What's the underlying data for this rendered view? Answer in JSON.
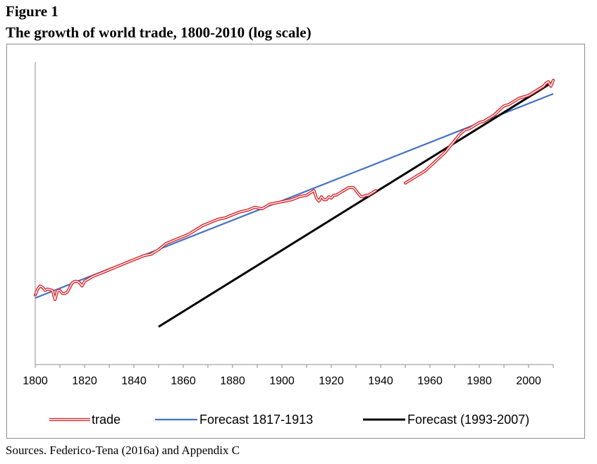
{
  "figure_label": "Figure 1",
  "figure_title": "The growth of world trade, 1800-2010 (log scale)",
  "sources": "Sources. Federico-Tena (2016a) and Appendix C",
  "chart_data": {
    "type": "line",
    "title": "The growth of world trade, 1800-2010 (log scale)",
    "xlabel": "",
    "ylabel": "",
    "xlim": [
      1800,
      2010
    ],
    "ylim": [
      0,
      100
    ],
    "y_scale_note": "log scale, no y tick labels shown",
    "grid": false,
    "legend_position": "bottom",
    "x_ticks": [
      1800,
      1820,
      1840,
      1860,
      1880,
      1900,
      1920,
      1940,
      1960,
      1980,
      2000
    ],
    "x_tick_labels": [
      "1800",
      "1820",
      "1840",
      "1860",
      "1880",
      "1900",
      "1920",
      "1940",
      "1960",
      "1980",
      "2000"
    ],
    "series": [
      {
        "name": "trade",
        "color": "#d9262b",
        "style": "double-outline",
        "segments": [
          [
            [
              1800,
              23
            ],
            [
              1801,
              25
            ],
            [
              1802,
              26
            ],
            [
              1803,
              25.5
            ],
            [
              1804,
              24.5
            ],
            [
              1805,
              25
            ],
            [
              1806,
              24.7
            ],
            [
              1807,
              24.5
            ],
            [
              1808,
              21.5
            ],
            [
              1809,
              24.5
            ],
            [
              1810,
              24.5
            ],
            [
              1811,
              23.5
            ],
            [
              1812,
              23.5
            ],
            [
              1813,
              24
            ],
            [
              1814,
              25.5
            ],
            [
              1815,
              27
            ],
            [
              1816,
              27.5
            ],
            [
              1817,
              27.5
            ],
            [
              1818,
              27
            ],
            [
              1819,
              26
            ],
            [
              1820,
              27.5
            ],
            [
              1823,
              29
            ],
            [
              1826,
              30
            ],
            [
              1829,
              31
            ],
            [
              1832,
              32
            ],
            [
              1835,
              33
            ],
            [
              1838,
              34
            ],
            [
              1841,
              35
            ],
            [
              1844,
              36
            ],
            [
              1847,
              36.5
            ],
            [
              1850,
              38
            ],
            [
              1853,
              40
            ],
            [
              1856,
              41
            ],
            [
              1859,
              42
            ],
            [
              1862,
              43
            ],
            [
              1865,
              44.5
            ],
            [
              1868,
              46
            ],
            [
              1871,
              47
            ],
            [
              1874,
              48
            ],
            [
              1877,
              48.5
            ],
            [
              1880,
              49.5
            ],
            [
              1883,
              50.5
            ],
            [
              1886,
              51
            ],
            [
              1889,
              52
            ],
            [
              1892,
              51.5
            ],
            [
              1895,
              53
            ],
            [
              1898,
              53.5
            ],
            [
              1901,
              54
            ],
            [
              1904,
              54.5
            ],
            [
              1907,
              55.5
            ],
            [
              1910,
              56
            ],
            [
              1912,
              57
            ],
            [
              1913,
              57.5
            ],
            [
              1914,
              55
            ],
            [
              1915,
              54
            ],
            [
              1916,
              55.5
            ],
            [
              1917,
              54.5
            ],
            [
              1918,
              54.5
            ],
            [
              1919,
              55.5
            ],
            [
              1920,
              55
            ],
            [
              1921,
              56
            ],
            [
              1922,
              56
            ],
            [
              1923,
              56.5
            ],
            [
              1924,
              57
            ],
            [
              1925,
              57.5
            ],
            [
              1926,
              58
            ],
            [
              1927,
              58.5
            ],
            [
              1928,
              58.5
            ],
            [
              1929,
              58.5
            ],
            [
              1930,
              57.5
            ],
            [
              1931,
              56.5
            ],
            [
              1932,
              55.5
            ],
            [
              1933,
              55.5
            ],
            [
              1934,
              56
            ],
            [
              1935,
              56
            ],
            [
              1936,
              56.5
            ],
            [
              1937,
              57
            ],
            [
              1938,
              57.5
            ]
          ],
          [
            [
              1950,
              60
            ],
            [
              1952,
              61
            ],
            [
              1954,
              62
            ],
            [
              1956,
              63
            ],
            [
              1958,
              64
            ],
            [
              1960,
              65.5
            ],
            [
              1962,
              67
            ],
            [
              1964,
              68.5
            ],
            [
              1966,
              70
            ],
            [
              1968,
              72
            ],
            [
              1970,
              74
            ],
            [
              1972,
              76
            ],
            [
              1974,
              77.5
            ],
            [
              1976,
              78
            ],
            [
              1978,
              79
            ],
            [
              1980,
              80
            ],
            [
              1982,
              80.5
            ],
            [
              1984,
              81.5
            ],
            [
              1986,
              82.5
            ],
            [
              1988,
              84
            ],
            [
              1990,
              85.5
            ],
            [
              1992,
              86
            ],
            [
              1994,
              87
            ],
            [
              1996,
              88
            ],
            [
              1998,
              88.5
            ],
            [
              2000,
              89
            ],
            [
              2002,
              90
            ],
            [
              2004,
              91
            ],
            [
              2006,
              92
            ],
            [
              2007,
              93
            ],
            [
              2008,
              93.5
            ],
            [
              2009,
              92
            ],
            [
              2010,
              94
            ]
          ]
        ]
      },
      {
        "name": "Forecast 1817-1913",
        "color": "#4472c4",
        "points": [
          [
            1800,
            22
          ],
          [
            2010,
            89.5
          ]
        ]
      },
      {
        "name": "Forecast (1993-2007)",
        "color": "#000000",
        "points": [
          [
            1850,
            12.5
          ],
          [
            2010,
            93.5
          ]
        ]
      }
    ]
  }
}
